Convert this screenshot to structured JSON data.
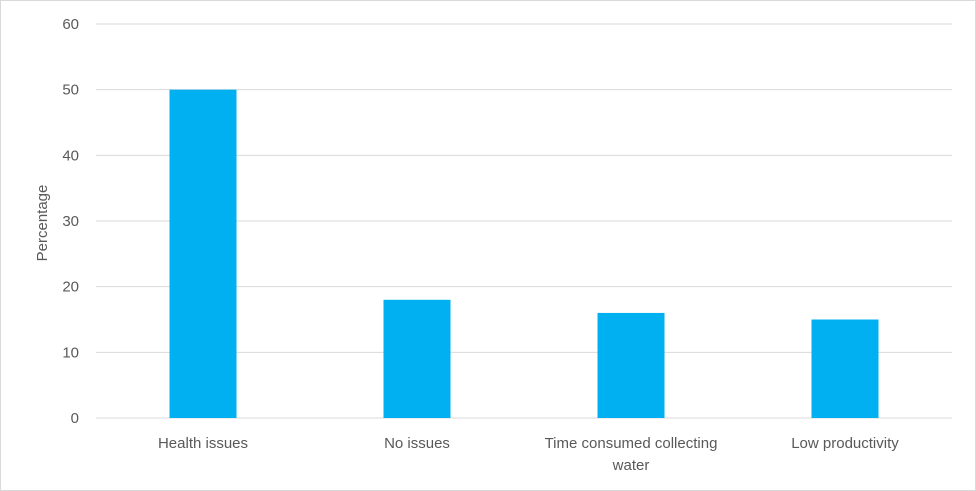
{
  "chart_data": {
    "type": "bar",
    "title": "",
    "xlabel": "",
    "ylabel": "Percentage",
    "categories": [
      [
        "Health issues"
      ],
      [
        "No issues"
      ],
      [
        "Time consumed collecting",
        "water"
      ],
      [
        "Low productivity"
      ]
    ],
    "values": [
      50,
      18,
      16,
      15
    ],
    "ylim": [
      0,
      60
    ],
    "yticks": [
      0,
      10,
      20,
      30,
      40,
      50,
      60
    ],
    "grid": true,
    "legend": "none",
    "colors": {
      "bar": "#00b0f0",
      "grid": "#d9d9d9",
      "text": "#595959"
    }
  }
}
